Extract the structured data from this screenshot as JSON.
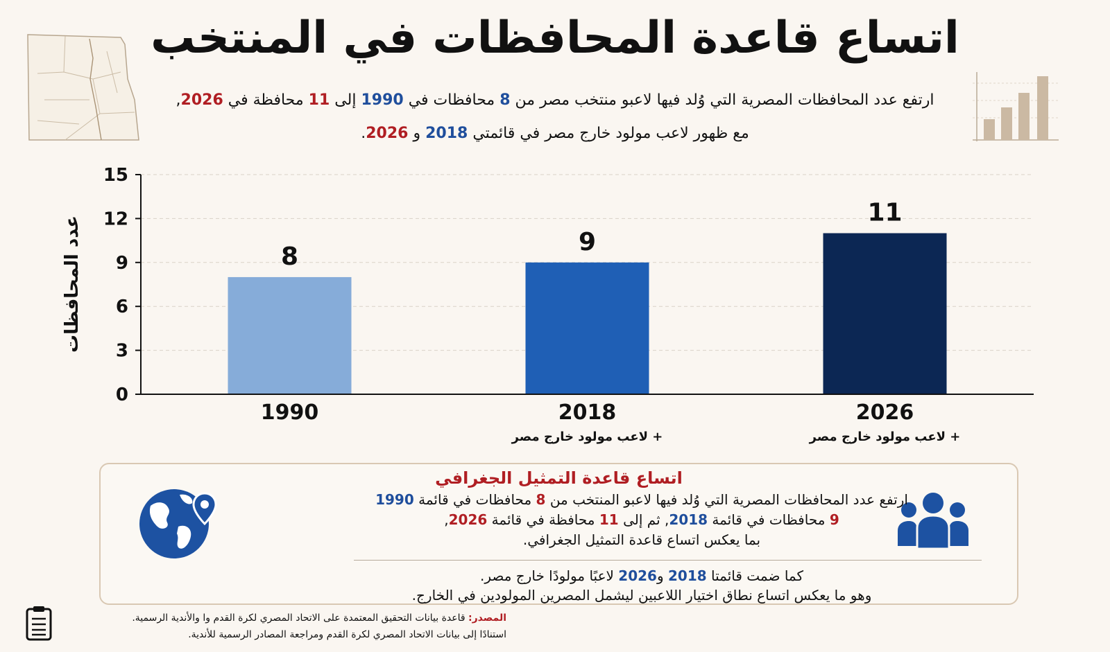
{
  "title": "اتساع قاعدة المحافظات في المنتخب",
  "subtitle": {
    "line1": {
      "a": "ارتفع عدد المحافظات المصرية التي  وُلد فيها لاعبو منتخب مصر من",
      "n1": "8",
      "b": "محافظات في",
      "y1": "1990",
      "c": "إلى",
      "n2": "11",
      "d": "محافظة في",
      "y2": "2026",
      "e": ","
    },
    "line2": {
      "a": "مع ظهور لاعب مولود خارج مصر في قائمتي",
      "y1": "2018",
      "b": "و",
      "y2": "2026",
      "c": "."
    }
  },
  "chart_data": {
    "type": "bar",
    "categories": [
      "1990",
      "2018",
      "2026"
    ],
    "values": [
      8,
      9,
      11
    ],
    "value_labels": [
      "8",
      "9",
      "11"
    ],
    "bar_colors": [
      "#86acd9",
      "#1f5fb5",
      "#0c2754"
    ],
    "category_notes": [
      "",
      "+ لاعب مولود خارج مصر",
      "+ لاعب مولود خارج مصر"
    ],
    "ylabel": "عدد المحافظات",
    "ylim": [
      0,
      15
    ],
    "yticks": [
      0,
      3,
      6,
      9,
      12,
      15
    ],
    "grid": true
  },
  "info": {
    "title": "اتساع قاعدة التمثيل الجغرافي",
    "p1": {
      "a": "ارتفع عدد المحافظات المصرية التي وُلد فيها لاعبو المنتخب من",
      "n1": "8",
      "b": "محافظات في قائمة",
      "y1": "1990"
    },
    "p2": {
      "n": "9",
      "a": "محافظات في قائمة",
      "y": "2018",
      "b": ", ثم إلى",
      "n2": "11",
      "c": "محافظة في قائمة",
      "y2": "2026",
      "d": ","
    },
    "p3": "بما يعكس اتساع قاعدة التمثيل الجغرافي.",
    "p4": {
      "a": "كما ضمت قائمتا",
      "y1": "2018",
      "b": "و",
      "y2": "2026",
      "c": "لاعبًا مولودًا خارج مصر."
    },
    "p5": "وهو ما يعكس اتساع نطاق اختيار اللاعبين ليشمل المصرين المولودين في الخارج."
  },
  "source": {
    "label": "المصدر:",
    "line1": "قاعدة بيانات التحقيق المعتمدة على الاتحاد المصري لكرة القدم وا والأندية الرسمية.",
    "line2": "استنادًا إلى بيانات الاتحاد المصري لكرة القدم ومراجعة المصادر الرسمية للأندية."
  },
  "icons": {
    "map": "egypt-map-icon",
    "bars": "bar-chart-icon",
    "globe": "globe-pin-icon",
    "people": "people-group-icon",
    "clipboard": "clipboard-icon"
  }
}
